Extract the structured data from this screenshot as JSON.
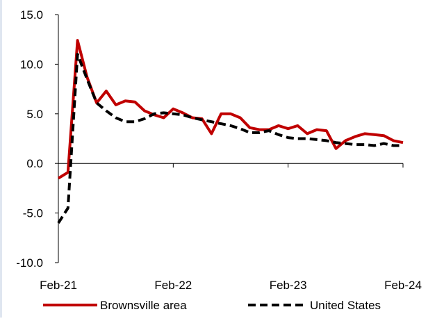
{
  "chart_data": {
    "type": "line",
    "title": "",
    "xlabel": "",
    "ylabel": "",
    "ylim": [
      -10,
      15
    ],
    "yticks": [
      -10,
      -5,
      0,
      5,
      10,
      15
    ],
    "ytick_labels": [
      "-10.0",
      "-5.0",
      "0.0",
      "5.0",
      "10.0",
      "15.0"
    ],
    "xticks": [
      {
        "label": "Feb-21",
        "month_index": 0
      },
      {
        "label": "Feb-22",
        "month_index": 12
      },
      {
        "label": "Feb-23",
        "month_index": 24
      },
      {
        "label": "Feb-24",
        "month_index": 36
      }
    ],
    "x": [
      "Feb-21",
      "Mar-21",
      "Apr-21",
      "May-21",
      "Jun-21",
      "Jul-21",
      "Aug-21",
      "Sep-21",
      "Oct-21",
      "Nov-21",
      "Dec-21",
      "Jan-22",
      "Feb-22",
      "Mar-22",
      "Apr-22",
      "May-22",
      "Jun-22",
      "Jul-22",
      "Aug-22",
      "Sep-22",
      "Oct-22",
      "Nov-22",
      "Dec-22",
      "Jan-23",
      "Feb-23",
      "Mar-23",
      "Apr-23",
      "May-23",
      "Jun-23",
      "Jul-23",
      "Aug-23",
      "Sep-23",
      "Oct-23",
      "Nov-23",
      "Dec-23",
      "Jan-24",
      "Feb-24"
    ],
    "grid": false,
    "legend_position": "bottom",
    "series": [
      {
        "name": "Brownsville area",
        "color": "#c00000",
        "style": "solid",
        "values": [
          -1.5,
          -0.9,
          12.4,
          8.7,
          6.1,
          7.3,
          5.9,
          6.3,
          6.2,
          5.3,
          4.9,
          4.6,
          5.5,
          5.1,
          4.6,
          4.5,
          3.0,
          5.0,
          5.0,
          4.6,
          3.6,
          3.4,
          3.4,
          3.8,
          3.5,
          3.8,
          3.0,
          3.4,
          3.3,
          1.5,
          2.3,
          2.7,
          3.0,
          2.9,
          2.8,
          2.3,
          2.1
        ]
      },
      {
        "name": "United States",
        "color": "#000000",
        "style": "dashed",
        "values": [
          -6.0,
          -4.5,
          11.0,
          8.5,
          6.1,
          5.3,
          4.6,
          4.2,
          4.2,
          4.5,
          5.0,
          5.1,
          5.0,
          4.9,
          4.6,
          4.4,
          4.2,
          4.0,
          3.8,
          3.5,
          3.1,
          3.1,
          3.3,
          2.9,
          2.6,
          2.5,
          2.5,
          2.4,
          2.3,
          2.1,
          2.0,
          1.9,
          1.9,
          1.8,
          2.0,
          1.8,
          1.8
        ]
      }
    ]
  }
}
